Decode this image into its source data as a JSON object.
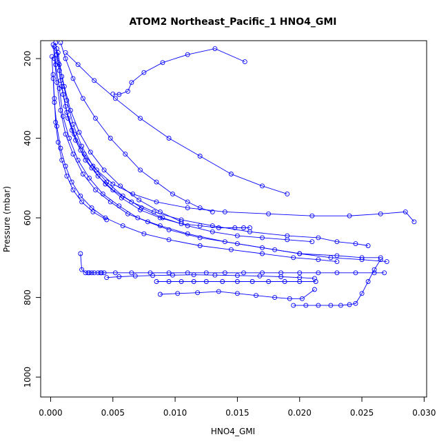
{
  "chart_data": {
    "type": "line",
    "title": "ATOM2 Northeast_Pacific_1 HNO4_GMI",
    "xlabel": "HNO4_GMI",
    "ylabel": "Pressure (mbar)",
    "xlim": [
      -0.0008,
      0.0302
    ],
    "ylim": [
      1050,
      155
    ],
    "y_reversed": true,
    "x_ticks": [
      0,
      0.005,
      0.01,
      0.015,
      0.02,
      0.025,
      0.03
    ],
    "x_tick_labels": [
      "0.000",
      "0.005",
      "0.010",
      "0.015",
      "0.020",
      "0.025",
      "0.030"
    ],
    "y_ticks": [
      200,
      400,
      600,
      800,
      1000
    ],
    "y_tick_labels": [
      "200",
      "400",
      "600",
      "800",
      "1000"
    ],
    "color": "#0000ff",
    "marker": "open-circle",
    "grid": false,
    "series": [
      {
        "x": [
          0.0002,
          0.0003,
          0.0005,
          0.0008,
          0.0012,
          0.0018,
          0.0026,
          0.0036,
          0.0048,
          0.0062,
          0.0078,
          0.0095,
          0.012,
          0.015,
          0.018,
          0.02,
          0.023,
          0.025,
          0.0265
        ],
        "y": [
          165,
          200,
          260,
          330,
          390,
          440,
          490,
          530,
          560,
          590,
          610,
          630,
          650,
          665,
          680,
          690,
          695,
          700,
          700
        ]
      },
      {
        "x": [
          0.0003,
          0.0004,
          0.0007,
          0.001,
          0.0015,
          0.0022,
          0.0031,
          0.0042,
          0.0055,
          0.007,
          0.0088,
          0.011,
          0.014,
          0.017,
          0.02,
          0.0225,
          0.025,
          0.027
        ],
        "y": [
          170,
          215,
          275,
          345,
          400,
          455,
          500,
          540,
          570,
          600,
          620,
          640,
          660,
          675,
          690,
          700,
          705,
          710
        ]
      },
      {
        "x": [
          0.0004,
          0.0006,
          0.0009,
          0.0013,
          0.0019,
          0.0027,
          0.0037,
          0.005,
          0.0066,
          0.0085,
          0.011,
          0.014,
          0.0175,
          0.021,
          0.024,
          0.0265,
          0.0285,
          0.0292
        ],
        "y": [
          160,
          210,
          270,
          335,
          390,
          440,
          480,
          515,
          540,
          560,
          575,
          585,
          590,
          595,
          595,
          590,
          585,
          610
        ]
      },
      {
        "x": [
          0.0005,
          0.0007,
          0.001,
          0.0014,
          0.002,
          0.0028,
          0.0038,
          0.005,
          0.0065,
          0.0083,
          0.0105,
          0.013,
          0.016,
          0.019,
          0.0215,
          0.023,
          0.0245,
          0.0255
        ],
        "y": [
          175,
          230,
          290,
          350,
          405,
          455,
          495,
          530,
          560,
          585,
          605,
          620,
          635,
          645,
          650,
          660,
          665,
          670
        ]
      },
      {
        "x": [
          0.0006,
          0.0009,
          0.0013,
          0.0018,
          0.0025,
          0.0034,
          0.0045,
          0.0058,
          0.0073,
          0.009,
          0.011,
          0.013,
          0.015,
          0.017,
          0.019,
          0.021
        ],
        "y": [
          185,
          245,
          305,
          365,
          420,
          470,
          510,
          545,
          575,
          600,
          620,
          635,
          645,
          650,
          655,
          660
        ]
      },
      {
        "x": [
          0.0005,
          0.0008,
          0.0012,
          0.0017,
          0.0024,
          0.0033,
          0.0044,
          0.0057,
          0.0072,
          0.0088,
          0.0105,
          0.012,
          0.0135,
          0.0148,
          0.0155,
          0.016
        ],
        "y": [
          190,
          255,
          320,
          380,
          430,
          475,
          515,
          550,
          580,
          600,
          615,
          620,
          625,
          625,
          625,
          625
        ]
      },
      {
        "x": [
          0.0008,
          0.0012,
          0.0018,
          0.0026,
          0.0036,
          0.0048,
          0.006,
          0.0072,
          0.0085,
          0.0098,
          0.011,
          0.012,
          0.013
        ],
        "y": [
          160,
          200,
          250,
          300,
          350,
          400,
          440,
          480,
          510,
          540,
          560,
          575,
          585
        ]
      },
      {
        "x": [
          0.0156,
          0.0132,
          0.011,
          0.009,
          0.0075,
          0.0065,
          0.0062,
          0.0055,
          0.005
        ],
        "y": [
          208,
          175,
          190,
          210,
          235,
          260,
          282,
          290,
          289
        ]
      },
      {
        "x": [
          0.0001,
          0.0002,
          0.0003,
          0.0005,
          0.0008,
          0.0012,
          0.0017,
          0.0024,
          0.0033,
          0.0044,
          0.0058,
          0.0075,
          0.0095,
          0.012,
          0.0145,
          0.017,
          0.0195,
          0.0215,
          0.023
        ],
        "y": [
          195,
          250,
          310,
          370,
          425,
          470,
          510,
          545,
          575,
          600,
          620,
          640,
          655,
          670,
          680,
          690,
          700,
          705,
          710
        ]
      },
      {
        "x": [
          0.0024,
          0.0025,
          0.0028,
          0.0031,
          0.0033,
          0.0035,
          0.0038,
          0.0041,
          0.0043
        ],
        "y": [
          690,
          730,
          738,
          738,
          738,
          738,
          738,
          738,
          738
        ]
      },
      {
        "x": [
          0.003,
          0.004,
          0.0052,
          0.0065,
          0.008,
          0.0095,
          0.011,
          0.0125,
          0.014,
          0.0155,
          0.017,
          0.0185,
          0.02,
          0.0215,
          0.023,
          0.0245,
          0.026,
          0.0268
        ],
        "y": [
          738,
          738,
          738,
          738,
          738,
          738,
          738,
          738,
          738,
          738,
          738,
          738,
          738,
          738,
          738,
          738,
          738,
          738
        ]
      },
      {
        "x": [
          0.0085,
          0.0095,
          0.0105,
          0.0115,
          0.0125,
          0.0138,
          0.015,
          0.0162,
          0.0175,
          0.0188,
          0.02,
          0.0213
        ],
        "y": [
          760,
          760,
          760,
          760,
          760,
          760,
          760,
          760,
          760,
          760,
          760,
          760
        ]
      },
      {
        "x": [
          0.0088,
          0.0102,
          0.0118,
          0.0135,
          0.015,
          0.0165,
          0.018,
          0.0192,
          0.0202,
          0.0212
        ],
        "y": [
          792,
          790,
          788,
          785,
          790,
          795,
          800,
          803,
          803,
          780
        ]
      },
      {
        "x": [
          0.0195,
          0.0205,
          0.0215,
          0.0225,
          0.0233,
          0.024,
          0.0245,
          0.025,
          0.0255,
          0.026,
          0.0265
        ],
        "y": [
          820,
          820,
          820,
          820,
          820,
          818,
          815,
          790,
          760,
          730,
          705
        ]
      },
      {
        "x": [
          0.0045,
          0.0055,
          0.0068,
          0.0082,
          0.0098,
          0.0115,
          0.0132,
          0.015,
          0.0168,
          0.0185,
          0.02,
          0.0212
        ],
        "y": [
          750,
          748,
          746,
          745,
          744,
          743,
          744,
          745,
          746,
          748,
          750,
          752
        ]
      },
      {
        "x": [
          0.0002,
          0.0003,
          0.0004,
          0.0006,
          0.0009,
          0.0013,
          0.0018,
          0.0025,
          0.0034,
          0.0045
        ],
        "y": [
          240,
          300,
          360,
          410,
          455,
          495,
          530,
          560,
          585,
          605
        ]
      },
      {
        "x": [
          0.0007,
          0.0011,
          0.0016,
          0.0023,
          0.0032,
          0.0043,
          0.0056,
          0.0071,
          0.0088,
          0.0105
        ],
        "y": [
          215,
          270,
          330,
          385,
          435,
          480,
          520,
          555,
          585,
          610
        ]
      },
      {
        "x": [
          0.0012,
          0.0022,
          0.0035,
          0.0052,
          0.0072,
          0.0095,
          0.012,
          0.0145,
          0.017,
          0.019
        ],
        "y": [
          185,
          215,
          255,
          300,
          350,
          400,
          445,
          490,
          520,
          540
        ]
      }
    ]
  }
}
